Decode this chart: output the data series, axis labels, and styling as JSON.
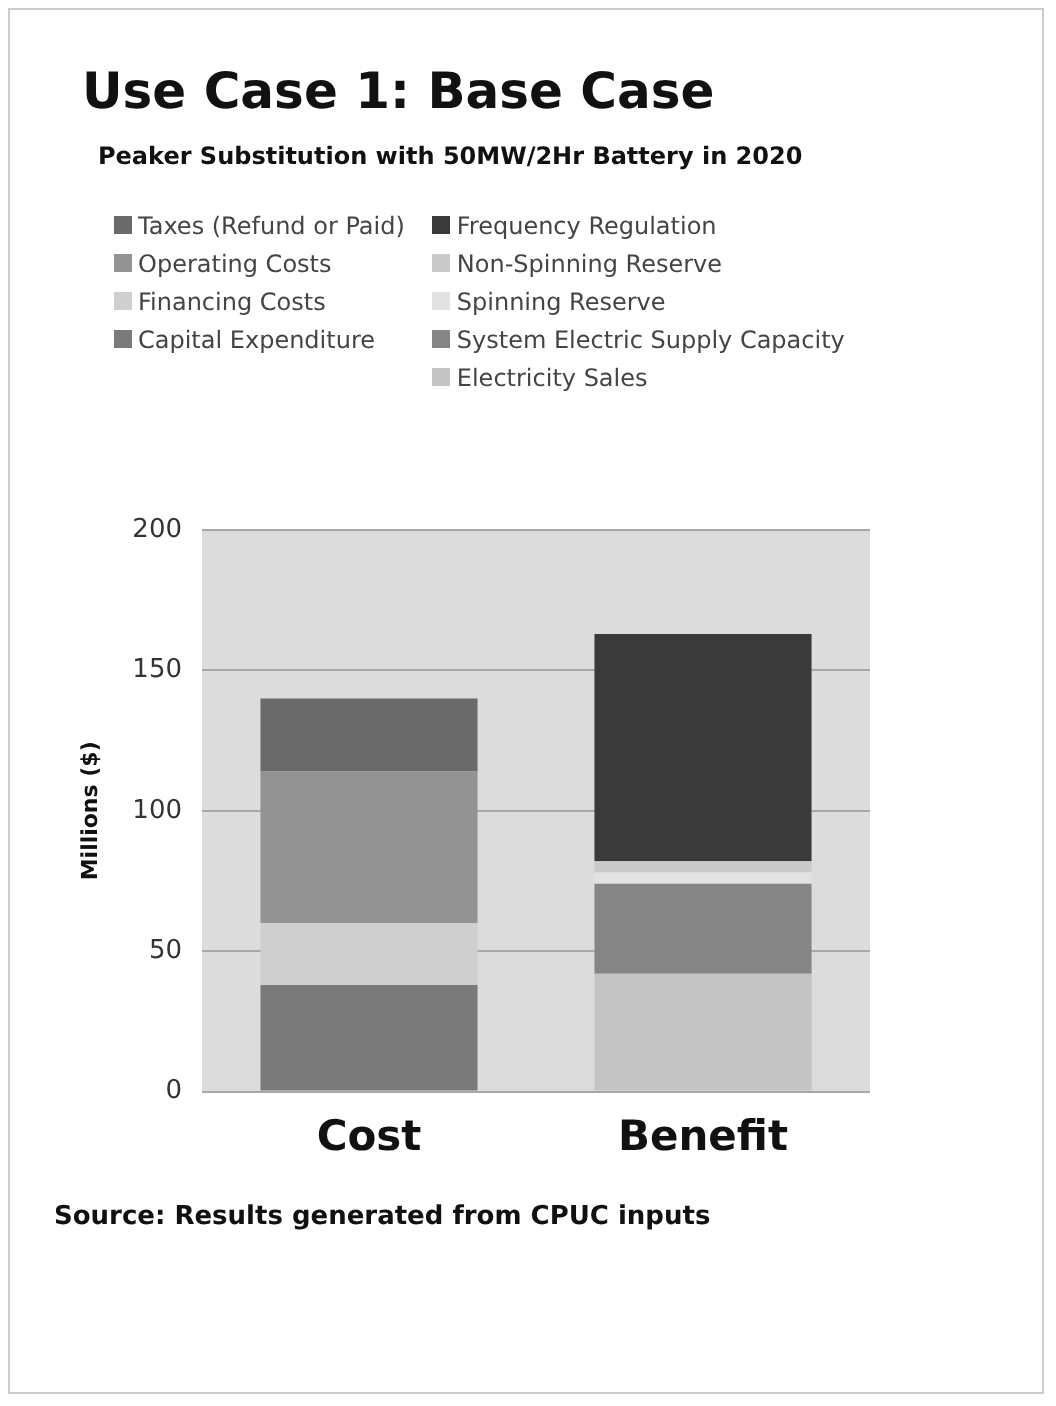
{
  "chart_data": {
    "type": "bar",
    "title": "Use Case 1: Base Case",
    "subtitle": "Peaker Substitution with 50MW/2Hr Battery in 2020",
    "ylabel": "Millions ($)",
    "categories": [
      "Cost",
      "Benefit"
    ],
    "stacked": true,
    "legend": "top",
    "grid": "y",
    "ylim": [
      0,
      200
    ],
    "yticks": [
      0,
      50,
      100,
      150,
      200
    ],
    "series": [
      {
        "name": "Capital Expenditure",
        "color": "#7a7a7a",
        "values": [
          38,
          null
        ]
      },
      {
        "name": "Financing Costs",
        "color": "#cfcfcf",
        "values": [
          22,
          null
        ]
      },
      {
        "name": "Operating Costs",
        "color": "#939393",
        "values": [
          54,
          null
        ]
      },
      {
        "name": "Taxes (Refund or Paid)",
        "color": "#6a6a6a",
        "values": [
          26,
          null
        ]
      },
      {
        "name": "Electricity Sales",
        "color": "#c4c4c4",
        "values": [
          null,
          42
        ]
      },
      {
        "name": "System Electric Supply Capacity",
        "color": "#858585",
        "values": [
          null,
          32
        ]
      },
      {
        "name": "Spinning Reserve",
        "color": "#e2e2e2",
        "values": [
          null,
          4
        ]
      },
      {
        "name": "Non-Spinning Reserve",
        "color": "#cacaca",
        "values": [
          null,
          4
        ]
      },
      {
        "name": "Frequency Regulation",
        "color": "#3a3a3a",
        "values": [
          null,
          81
        ]
      }
    ],
    "annotations": [
      "Source: Results generated from CPUC inputs"
    ]
  }
}
